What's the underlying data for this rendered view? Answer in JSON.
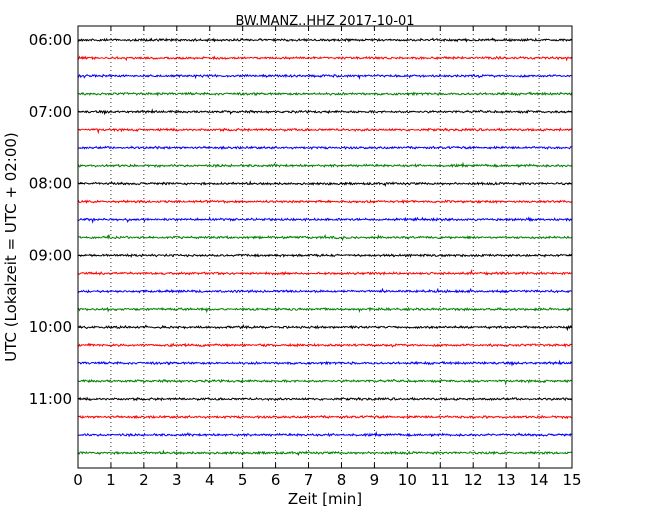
{
  "chart_data": {
    "type": "line",
    "title": "BW.MANZ..HHZ 2017-10-01",
    "xlabel": "Zeit  [min]",
    "ylabel": "UTC (Lokalzeit = UTC + 02:00)",
    "xlim": [
      0,
      15
    ],
    "x_ticks": [
      "0",
      "1",
      "2",
      "3",
      "4",
      "5",
      "6",
      "7",
      "8",
      "9",
      "10",
      "11",
      "12",
      "13",
      "14",
      "15"
    ],
    "y_ticks": [
      "06:00",
      "07:00",
      "08:00",
      "09:00",
      "10:00",
      "11:00"
    ],
    "y_tick_rows": [
      0,
      4,
      8,
      12,
      16,
      20
    ],
    "vertical_grid": "dotted",
    "rows": 24,
    "row_colors": [
      "#000000",
      "#ff0000",
      "#0000ff",
      "#008000"
    ]
  }
}
